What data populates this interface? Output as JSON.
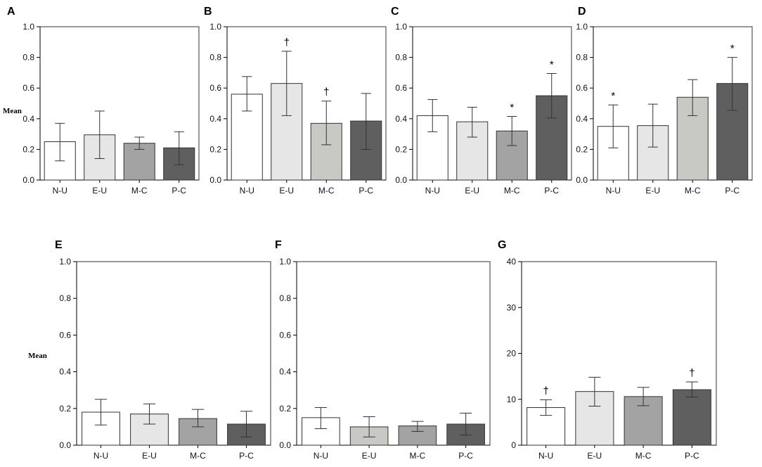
{
  "figure": {
    "fill_colors": {
      "N-U": "#ffffff",
      "E-U": "#e6e6e6",
      "M-C": "#a3a3a3",
      "P-C": "#5f5f5f",
      "B_M-C": "#c8c8c4",
      "D_M-C": "#c8c8c4",
      "F_E-U": "#c8c8c4"
    }
  },
  "chart_data": [
    {
      "panel": "A",
      "type": "bar",
      "title": "A",
      "ylabel": "Mean",
      "categories": [
        "N-U",
        "E-U",
        "M-C",
        "P-C"
      ],
      "values": [
        0.25,
        0.295,
        0.24,
        0.21
      ],
      "error_low": [
        0.125,
        0.14,
        0.2,
        0.1
      ],
      "error_high": [
        0.37,
        0.45,
        0.28,
        0.315
      ],
      "annotations": [
        "",
        "",
        "",
        ""
      ],
      "ylim": [
        0,
        1.0
      ],
      "yticks": [
        "0.0",
        "0.2",
        "0.4",
        "0.6",
        "0.8",
        "1.0"
      ]
    },
    {
      "panel": "B",
      "type": "bar",
      "title": "B",
      "ylabel": "",
      "categories": [
        "N-U",
        "E-U",
        "M-C",
        "P-C"
      ],
      "values": [
        0.56,
        0.63,
        0.37,
        0.385
      ],
      "error_low": [
        0.45,
        0.42,
        0.23,
        0.2
      ],
      "error_high": [
        0.675,
        0.84,
        0.515,
        0.565
      ],
      "annotations": [
        "",
        "†",
        "†",
        ""
      ],
      "ylim": [
        0,
        1.0
      ],
      "yticks": [
        "0.0",
        "0.2",
        "0.4",
        "0.6",
        "0.8",
        "1.0"
      ]
    },
    {
      "panel": "C",
      "type": "bar",
      "title": "C",
      "ylabel": "",
      "categories": [
        "N-U",
        "E-U",
        "M-C",
        "P-C"
      ],
      "values": [
        0.42,
        0.38,
        0.32,
        0.55
      ],
      "error_low": [
        0.315,
        0.28,
        0.225,
        0.405
      ],
      "error_high": [
        0.525,
        0.475,
        0.415,
        0.695
      ],
      "annotations": [
        "",
        "",
        "*",
        "*"
      ],
      "ylim": [
        0,
        1.0
      ],
      "yticks": [
        "0.0",
        "0.2",
        "0.4",
        "0.6",
        "0.8",
        "1.0"
      ]
    },
    {
      "panel": "D",
      "type": "bar",
      "title": "D",
      "ylabel": "",
      "categories": [
        "N-U",
        "E-U",
        "M-C",
        "P-C"
      ],
      "values": [
        0.35,
        0.355,
        0.54,
        0.63
      ],
      "error_low": [
        0.21,
        0.215,
        0.42,
        0.455
      ],
      "error_high": [
        0.49,
        0.495,
        0.655,
        0.8
      ],
      "annotations": [
        "*",
        "",
        "",
        "*"
      ],
      "ylim": [
        0,
        1.0
      ],
      "yticks": [
        "0.0",
        "0.2",
        "0.4",
        "0.6",
        "0.8",
        "1.0"
      ]
    },
    {
      "panel": "E",
      "type": "bar",
      "title": "E",
      "ylabel": "Mean",
      "categories": [
        "N-U",
        "E-U",
        "M-C",
        "P-C"
      ],
      "values": [
        0.18,
        0.17,
        0.145,
        0.115
      ],
      "error_low": [
        0.11,
        0.115,
        0.1,
        0.045
      ],
      "error_high": [
        0.25,
        0.225,
        0.195,
        0.185
      ],
      "annotations": [
        "",
        "",
        "",
        ""
      ],
      "ylim": [
        0,
        1.0
      ],
      "yticks": [
        "0.0",
        "0.2",
        "0.4",
        "0.6",
        "0.8",
        "1.0"
      ]
    },
    {
      "panel": "F",
      "type": "bar",
      "title": "F",
      "ylabel": "",
      "categories": [
        "N-U",
        "E-U",
        "M-C",
        "P-C"
      ],
      "values": [
        0.15,
        0.1,
        0.105,
        0.115
      ],
      "error_low": [
        0.09,
        0.045,
        0.075,
        0.055
      ],
      "error_high": [
        0.205,
        0.155,
        0.13,
        0.175
      ],
      "annotations": [
        "",
        "",
        "",
        ""
      ],
      "ylim": [
        0,
        1.0
      ],
      "yticks": [
        "0.0",
        "0.2",
        "0.4",
        "0.6",
        "0.8",
        "1.0"
      ]
    },
    {
      "panel": "G",
      "type": "bar",
      "title": "G",
      "ylabel": "",
      "categories": [
        "N-U",
        "E-U",
        "M-C",
        "P-C"
      ],
      "values": [
        8.2,
        11.7,
        10.6,
        12.1
      ],
      "error_low": [
        6.5,
        8.5,
        8.6,
        10.5
      ],
      "error_high": [
        9.9,
        14.8,
        12.6,
        13.8
      ],
      "annotations": [
        "†",
        "",
        "",
        "†"
      ],
      "ylim": [
        0,
        40
      ],
      "yticks": [
        "0",
        "10",
        "20",
        "30",
        "40"
      ]
    }
  ]
}
